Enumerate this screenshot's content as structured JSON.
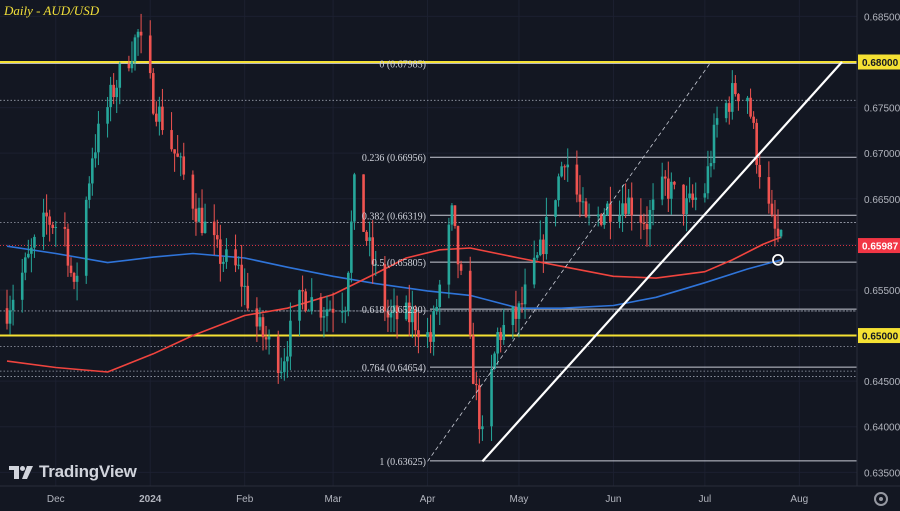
{
  "header": {
    "title": "Daily - AUD/USD"
  },
  "logo": {
    "text": "TradingView",
    "icon": "tradingview-logo-icon"
  },
  "colors": {
    "background": "#131722",
    "yellow_line": "#f5e133",
    "fib_line": "#c9ccd6",
    "ma_red": "#f0443e",
    "ma_blue": "#2f74d9",
    "candle_up": "#26a69a",
    "candle_down": "#ef5350",
    "trendline": "#ffffff",
    "price_tag_red": "#f23645"
  },
  "chart_data": {
    "type": "candlestick",
    "title": "Daily - AUD/USD",
    "ylim": [
      0.6335,
      0.6868
    ],
    "y_ticks": [
      "0.68500",
      "0.68000",
      "0.67500",
      "0.67000",
      "0.66500",
      "0.66000",
      "0.65500",
      "0.65000",
      "0.64500",
      "0.64000",
      "0.63500"
    ],
    "x_ticks": [
      "Dec",
      "2024",
      "Feb",
      "Mar",
      "Apr",
      "May",
      "Jun",
      "Jul",
      "Aug"
    ],
    "x_range": [
      "2023-11-15",
      "2024-08-15"
    ],
    "price_labels": {
      "current": {
        "value": 0.65987,
        "text": "0.65987"
      },
      "level_68000": {
        "value": 0.68,
        "text": "0.68000"
      },
      "level_65000": {
        "value": 0.65,
        "text": "0.65000"
      }
    },
    "horizontal_lines": {
      "yellow": [
        0.68,
        0.65
      ],
      "dotted": [
        0.6758,
        0.6624,
        0.6527,
        0.6488,
        0.6461,
        0.6455
      ]
    },
    "fibonacci": [
      {
        "label": "0 (0.67985)",
        "value": 0.67985
      },
      {
        "label": "0.236 (0.66956)",
        "value": 0.66956
      },
      {
        "label": "0.382 (0.66319)",
        "value": 0.66319
      },
      {
        "label": "0.5 (0.65805)",
        "value": 0.65805
      },
      {
        "label": "0.618 (0.65290)",
        "value": 0.6529
      },
      {
        "label": "0.764 (0.64654)",
        "value": 0.64654
      },
      {
        "label": "1 (0.63625)",
        "value": 0.63625
      }
    ],
    "trendline": {
      "from": {
        "x": "2024-04-19",
        "y": 0.6362
      },
      "to": {
        "x": "2024-08-15",
        "y": 0.68
      }
    },
    "fib_diagonal": {
      "from": {
        "x": "2024-04-01",
        "y": 0.6362
      },
      "to": {
        "x": "2024-07-03",
        "y": 0.68
      }
    },
    "circle_marker": {
      "x": "2024-07-25",
      "y": 0.6583
    },
    "ma_red": [
      [
        "2023-11-15",
        0.6472
      ],
      [
        "2023-12-01",
        0.6465
      ],
      [
        "2023-12-18",
        0.646
      ],
      [
        "2024-01-02",
        0.648
      ],
      [
        "2024-01-15",
        0.65
      ],
      [
        "2024-02-01",
        0.6522
      ],
      [
        "2024-02-15",
        0.653
      ],
      [
        "2024-03-01",
        0.6545
      ],
      [
        "2024-03-15",
        0.6568
      ],
      [
        "2024-03-25",
        0.6585
      ],
      [
        "2024-04-05",
        0.6594
      ],
      [
        "2024-04-15",
        0.6596
      ],
      [
        "2024-05-01",
        0.6585
      ],
      [
        "2024-05-15",
        0.6576
      ],
      [
        "2024-06-01",
        0.6565
      ],
      [
        "2024-06-15",
        0.6563
      ],
      [
        "2024-07-01",
        0.657
      ],
      [
        "2024-07-10",
        0.6583
      ],
      [
        "2024-07-20",
        0.66
      ],
      [
        "2024-07-26",
        0.6608
      ]
    ],
    "ma_blue": [
      [
        "2023-11-15",
        0.6598
      ],
      [
        "2023-12-01",
        0.659
      ],
      [
        "2023-12-18",
        0.658
      ],
      [
        "2024-01-02",
        0.6586
      ],
      [
        "2024-01-15",
        0.659
      ],
      [
        "2024-02-01",
        0.6585
      ],
      [
        "2024-02-15",
        0.6575
      ],
      [
        "2024-03-01",
        0.6565
      ],
      [
        "2024-03-15",
        0.6557
      ],
      [
        "2024-04-01",
        0.6549
      ],
      [
        "2024-04-15",
        0.6544
      ],
      [
        "2024-05-01",
        0.653
      ],
      [
        "2024-05-15",
        0.653
      ],
      [
        "2024-06-01",
        0.6533
      ],
      [
        "2024-06-15",
        0.6542
      ],
      [
        "2024-07-01",
        0.6558
      ],
      [
        "2024-07-15",
        0.6573
      ],
      [
        "2024-07-26",
        0.6583
      ]
    ],
    "candles_description": "AUD/USD daily OHLC, mid-Nov 2023 to late Jul 2024",
    "candles_path": [
      [
        "2023-11-15",
        0.653
      ],
      [
        "2023-11-21",
        0.6575
      ],
      [
        "2023-11-28",
        0.6628
      ],
      [
        "2023-12-04",
        0.6615
      ],
      [
        "2023-12-07",
        0.6545
      ],
      [
        "2023-12-13",
        0.67
      ],
      [
        "2023-12-20",
        0.677
      ],
      [
        "2023-12-28",
        0.683
      ],
      [
        "2024-01-02",
        0.676
      ],
      [
        "2024-01-09",
        0.67
      ],
      [
        "2024-01-16",
        0.664
      ],
      [
        "2024-01-23",
        0.659
      ],
      [
        "2024-01-30",
        0.657
      ],
      [
        "2024-02-05",
        0.651
      ],
      [
        "2024-02-13",
        0.647
      ],
      [
        "2024-02-20",
        0.6545
      ],
      [
        "2024-02-27",
        0.653
      ],
      [
        "2024-03-05",
        0.654
      ],
      [
        "2024-03-08",
        0.666
      ],
      [
        "2024-03-14",
        0.658
      ],
      [
        "2024-03-19",
        0.652
      ],
      [
        "2024-03-27",
        0.652
      ],
      [
        "2024-04-02",
        0.6495
      ],
      [
        "2024-04-09",
        0.663
      ],
      [
        "2024-04-15",
        0.6485
      ],
      [
        "2024-04-19",
        0.6385
      ],
      [
        "2024-04-24",
        0.65
      ],
      [
        "2024-05-01",
        0.6525
      ],
      [
        "2024-05-08",
        0.659
      ],
      [
        "2024-05-16",
        0.67
      ],
      [
        "2024-05-23",
        0.662
      ],
      [
        "2024-05-30",
        0.664
      ],
      [
        "2024-06-05",
        0.665
      ],
      [
        "2024-06-12",
        0.6625
      ],
      [
        "2024-06-18",
        0.6665
      ],
      [
        "2024-06-25",
        0.664
      ],
      [
        "2024-07-01",
        0.666
      ],
      [
        "2024-07-05",
        0.6735
      ],
      [
        "2024-07-11",
        0.677
      ],
      [
        "2024-07-15",
        0.6765
      ],
      [
        "2024-07-18",
        0.67
      ],
      [
        "2024-07-23",
        0.662
      ],
      [
        "2024-07-26",
        0.6599
      ]
    ]
  }
}
